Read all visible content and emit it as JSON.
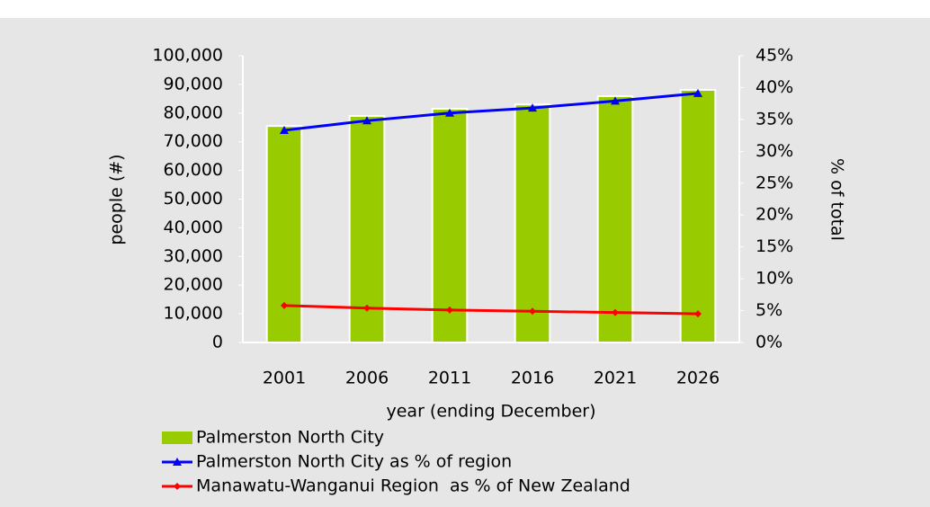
{
  "chart_data": {
    "type": "bar_line",
    "categories": [
      "2001",
      "2006",
      "2011",
      "2016",
      "2021",
      "2026"
    ],
    "series": [
      {
        "name": "Palmerston North City",
        "color": "#99cc00",
        "axis": "y",
        "kind": "bar",
        "values": [
          75500,
          79000,
          81500,
          83000,
          85900,
          88100
        ]
      },
      {
        "name": "Palmerston North City as % of region",
        "color": "#0000ff",
        "axis": "y2",
        "kind": "line",
        "marker": "triangle",
        "values": [
          33.3,
          34.8,
          36.0,
          36.8,
          37.9,
          39.1
        ]
      },
      {
        "name": "Manawatu-Wanganui Region  as % of New Zealand",
        "color": "#ff0000",
        "axis": "y2",
        "kind": "line",
        "marker": "diamond",
        "values": [
          5.8,
          5.4,
          5.1,
          4.9,
          4.7,
          4.5
        ]
      }
    ],
    "xlabel": "year (ending December)",
    "ylabel": "people (#)",
    "y2label": "% of total",
    "ylim": [
      0,
      100000
    ],
    "yticks": [
      0,
      {
        "value": 10000,
        "label": "10,000"
      },
      {
        "value": 20000,
        "label": "20,000"
      },
      {
        "value": 30000,
        "label": "30,000"
      },
      {
        "value": 40000,
        "label": "40,000"
      },
      {
        "value": 50000,
        "label": "50,000"
      },
      {
        "value": 60000,
        "label": "60,000"
      },
      {
        "value": 70000,
        "label": "70,000"
      },
      {
        "value": 80000,
        "label": "80,000"
      },
      {
        "value": 90000,
        "label": "90,000"
      },
      {
        "value": 100000,
        "label": "100,000"
      }
    ],
    "y2lim": [
      0,
      45
    ],
    "y2ticks": [
      {
        "value": 0,
        "label": "0%"
      },
      {
        "value": 5,
        "label": "5%"
      },
      {
        "value": 10,
        "label": "10%"
      },
      {
        "value": 15,
        "label": "15%"
      },
      {
        "value": 20,
        "label": "20%"
      },
      {
        "value": 25,
        "label": "25%"
      },
      {
        "value": 30,
        "label": "30%"
      },
      {
        "value": 35,
        "label": "35%"
      },
      {
        "value": 40,
        "label": "40%"
      },
      {
        "value": 45,
        "label": "45%"
      }
    ],
    "legend": "bottom"
  }
}
